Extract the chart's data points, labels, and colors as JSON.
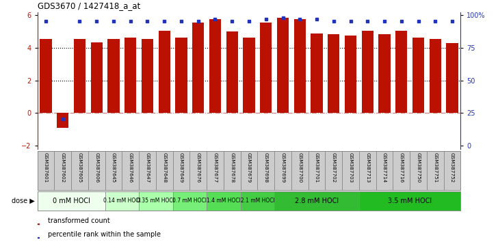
{
  "title": "GDS3670 / 1427418_a_at",
  "samples": [
    "GSM387601",
    "GSM387602",
    "GSM387605",
    "GSM387606",
    "GSM387645",
    "GSM387646",
    "GSM387647",
    "GSM387648",
    "GSM387649",
    "GSM387676",
    "GSM387677",
    "GSM387678",
    "GSM387679",
    "GSM387698",
    "GSM387699",
    "GSM387700",
    "GSM387701",
    "GSM387702",
    "GSM387703",
    "GSM387713",
    "GSM387714",
    "GSM387716",
    "GSM387750",
    "GSM387751",
    "GSM387752"
  ],
  "bar_values": [
    4.55,
    -0.9,
    4.55,
    4.35,
    4.55,
    4.65,
    4.55,
    5.05,
    4.65,
    5.55,
    5.75,
    5.0,
    4.65,
    5.55,
    5.85,
    5.75,
    4.9,
    4.85,
    4.75,
    5.05,
    4.85,
    5.05,
    4.65,
    4.55,
    4.3
  ],
  "percentile_values": [
    5.65,
    -0.35,
    5.65,
    5.65,
    5.65,
    5.65,
    5.65,
    5.65,
    5.65,
    5.65,
    5.75,
    5.65,
    5.65,
    5.75,
    5.85,
    5.75,
    5.75,
    5.65,
    5.65,
    5.65,
    5.65,
    5.65,
    5.65,
    5.65,
    5.65
  ],
  "dose_groups": [
    {
      "label": "0 mM HOCl",
      "count": 4,
      "color": "#eeffee"
    },
    {
      "label": "0.14 mM HOCl",
      "count": 2,
      "color": "#ccffcc"
    },
    {
      "label": "0.35 mM HOCl",
      "count": 2,
      "color": "#aaffaa"
    },
    {
      "label": "0.7 mM HOCl",
      "count": 2,
      "color": "#77ee77"
    },
    {
      "label": "1.4 mM HOCl",
      "count": 2,
      "color": "#55dd55"
    },
    {
      "label": "2.1 mM HOCl",
      "count": 2,
      "color": "#44cc44"
    },
    {
      "label": "2.8 mM HOCl",
      "count": 5,
      "color": "#33bb33"
    },
    {
      "label": "3.5 mM HOCl",
      "count": 6,
      "color": "#22bb22"
    }
  ],
  "bar_color": "#bb1100",
  "percentile_color": "#2233bb",
  "bg_color": "#ffffff",
  "tickbox_color": "#cccccc",
  "ylim": [
    -2.2,
    6.2
  ],
  "left_yticks": [
    -2,
    0,
    2,
    4,
    6
  ],
  "right_yticks": [
    0,
    25,
    50,
    75,
    100
  ],
  "dotted_lines": [
    2.0,
    4.0
  ],
  "bar_width": 0.7
}
